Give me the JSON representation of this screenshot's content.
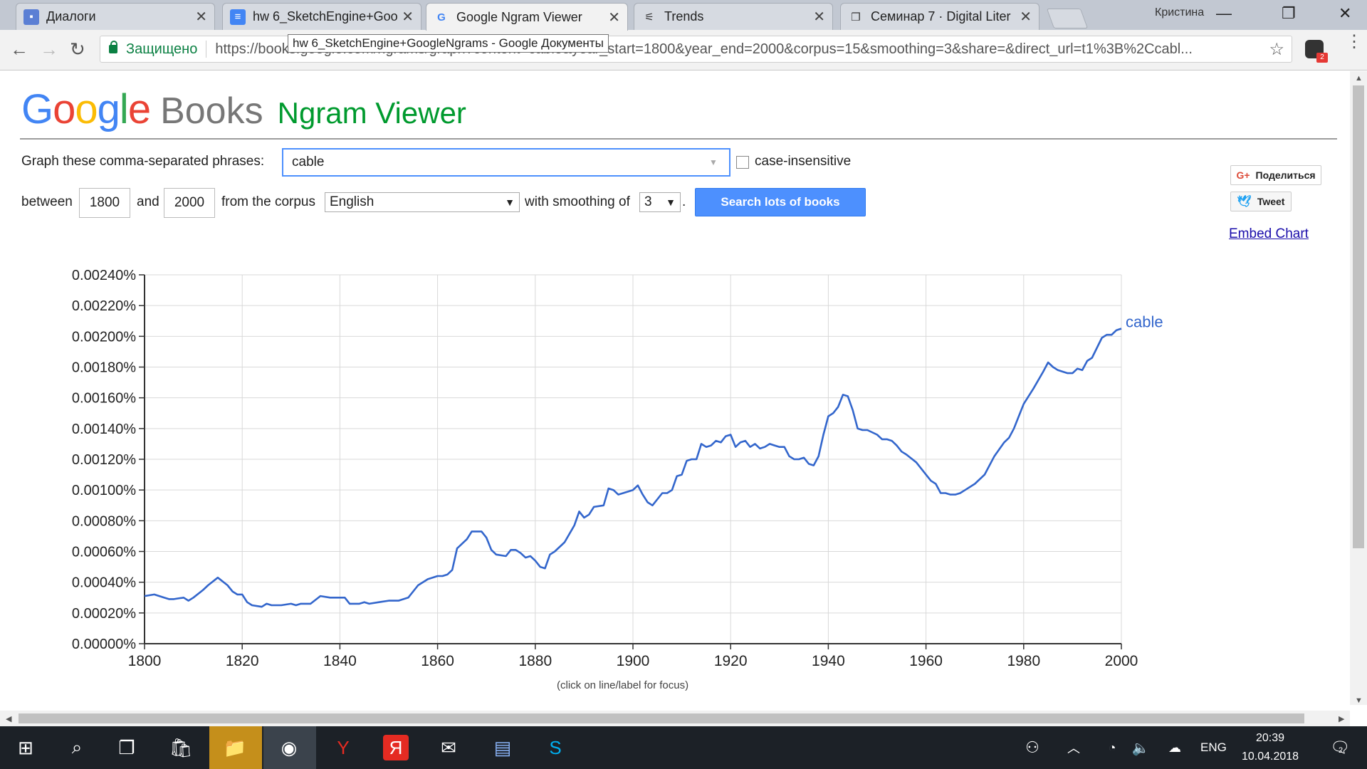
{
  "browser": {
    "tabs": [
      {
        "title": "Диалоги",
        "icon": "chat-icon"
      },
      {
        "title": "hw 6_SketchEngine+Goo",
        "icon": "docs-icon"
      },
      {
        "title": "Google Ngram Viewer",
        "icon": "google-icon"
      },
      {
        "title": "Trends",
        "icon": "trends-icon"
      },
      {
        "title": "Семинар 7 · Digital Liter",
        "icon": "book-icon"
      }
    ],
    "close_glyph": "✕",
    "profile_name": "Кристина",
    "secure_label": "Защищено",
    "url": "https://books.google.com/ngrams/graph?content=cable&year_start=1800&year_end=2000&corpus=15&smoothing=3&share=&direct_url=t1%3B%2Ccabl...",
    "tooltip": "hw 6_SketchEngine+GoogleNgrams - Google Документы",
    "extension_badge": "2"
  },
  "header": {
    "google_letters": [
      {
        "ch": "G",
        "color": "#4285f4"
      },
      {
        "ch": "o",
        "color": "#ea4335"
      },
      {
        "ch": "o",
        "color": "#fbbc05"
      },
      {
        "ch": "g",
        "color": "#4285f4"
      },
      {
        "ch": "l",
        "color": "#34a853"
      },
      {
        "ch": "e",
        "color": "#ea4335"
      }
    ],
    "books": "Books",
    "ngram_viewer": "Ngram Viewer"
  },
  "form": {
    "phrases_label": "Graph these comma-separated phrases:",
    "phrases_value": "cable",
    "case_insensitive_label": "case-insensitive",
    "between_label": "between",
    "year_start": "1800",
    "and_label": "and",
    "year_end": "2000",
    "corpus_label": "from the corpus",
    "corpus_value": "English",
    "smoothing_label": "with smoothing of",
    "smoothing_value": "3",
    "period": ".",
    "search_button": "Search lots of books"
  },
  "social": {
    "share_label": "Поделиться",
    "tweet_label": "Tweet",
    "embed_label": "Embed Chart"
  },
  "chart_data": {
    "type": "line",
    "title": "",
    "xlabel": "",
    "ylabel": "",
    "xlim": [
      1800,
      2000
    ],
    "ylim": [
      0,
      0.0024
    ],
    "x_ticks": [
      "1800",
      "1820",
      "1840",
      "1860",
      "1880",
      "1900",
      "1920",
      "1940",
      "1960",
      "1980",
      "2000"
    ],
    "y_ticks": [
      "0.00000%",
      "0.00020%",
      "0.00040%",
      "0.00060%",
      "0.00080%",
      "0.00100%",
      "0.00120%",
      "0.00140%",
      "0.00160%",
      "0.00180%",
      "0.00200%",
      "0.00220%",
      "0.00240%"
    ],
    "grid": true,
    "color": "#3366cc",
    "series": [
      {
        "name": "cable",
        "x": [
          1800,
          1802,
          1804,
          1805,
          1806,
          1808,
          1809,
          1810,
          1812,
          1813,
          1815,
          1817,
          1818,
          1819,
          1820,
          1821,
          1822,
          1824,
          1825,
          1826,
          1828,
          1830,
          1831,
          1832,
          1834,
          1836,
          1838,
          1840,
          1841,
          1842,
          1844,
          1845,
          1846,
          1848,
          1850,
          1852,
          1854,
          1856,
          1858,
          1860,
          1861,
          1862,
          1863,
          1864,
          1866,
          1867,
          1868,
          1869,
          1870,
          1871,
          1872,
          1874,
          1875,
          1876,
          1877,
          1878,
          1879,
          1880,
          1881,
          1882,
          1883,
          1884,
          1885,
          1886,
          1888,
          1889,
          1890,
          1891,
          1892,
          1894,
          1895,
          1896,
          1897,
          1898,
          1900,
          1901,
          1902,
          1903,
          1904,
          1906,
          1907,
          1908,
          1909,
          1910,
          1911,
          1912,
          1913,
          1914,
          1915,
          1916,
          1917,
          1918,
          1919,
          1920,
          1921,
          1922,
          1923,
          1924,
          1925,
          1926,
          1927,
          1928,
          1929,
          1930,
          1931,
          1932,
          1933,
          1934,
          1935,
          1936,
          1937,
          1938,
          1939,
          1940,
          1941,
          1942,
          1943,
          1944,
          1945,
          1946,
          1947,
          1948,
          1950,
          1951,
          1952,
          1953,
          1954,
          1955,
          1956,
          1958,
          1960,
          1961,
          1962,
          1963,
          1964,
          1965,
          1966,
          1967,
          1968,
          1970,
          1972,
          1974,
          1976,
          1977,
          1978,
          1979,
          1980,
          1982,
          1984,
          1985,
          1986,
          1987,
          1988,
          1989,
          1990,
          1991,
          1992,
          1993,
          1994,
          1996,
          1997,
          1998,
          1999,
          2000
        ],
        "y": [
          0.00031,
          0.00032,
          0.0003,
          0.00029,
          0.00029,
          0.0003,
          0.00028,
          0.0003,
          0.00035,
          0.00038,
          0.00043,
          0.00038,
          0.00034,
          0.00032,
          0.00032,
          0.00027,
          0.00025,
          0.00024,
          0.00026,
          0.00025,
          0.00025,
          0.00026,
          0.00025,
          0.00026,
          0.00026,
          0.00031,
          0.0003,
          0.0003,
          0.0003,
          0.00026,
          0.00026,
          0.00027,
          0.00026,
          0.00027,
          0.00028,
          0.00028,
          0.0003,
          0.00038,
          0.00042,
          0.00044,
          0.00044,
          0.00045,
          0.00048,
          0.00062,
          0.00068,
          0.00073,
          0.00073,
          0.00073,
          0.00069,
          0.00061,
          0.00058,
          0.00057,
          0.00061,
          0.00061,
          0.00059,
          0.00056,
          0.00057,
          0.00054,
          0.0005,
          0.00049,
          0.00058,
          0.0006,
          0.00063,
          0.00066,
          0.00077,
          0.00086,
          0.00082,
          0.00084,
          0.00089,
          0.0009,
          0.00101,
          0.001,
          0.00097,
          0.00098,
          0.001,
          0.00103,
          0.00097,
          0.00092,
          0.0009,
          0.00098,
          0.00098,
          0.001,
          0.00109,
          0.0011,
          0.00119,
          0.0012,
          0.0012,
          0.0013,
          0.00128,
          0.00129,
          0.00132,
          0.00131,
          0.00135,
          0.00136,
          0.00128,
          0.00131,
          0.00132,
          0.00128,
          0.0013,
          0.00127,
          0.00128,
          0.0013,
          0.00129,
          0.00128,
          0.00128,
          0.00122,
          0.0012,
          0.0012,
          0.00121,
          0.00117,
          0.00116,
          0.00122,
          0.00136,
          0.00148,
          0.0015,
          0.00154,
          0.00162,
          0.00161,
          0.00152,
          0.0014,
          0.00139,
          0.00139,
          0.00136,
          0.00133,
          0.00133,
          0.00132,
          0.00129,
          0.00125,
          0.00123,
          0.00118,
          0.0011,
          0.00106,
          0.00104,
          0.00098,
          0.00098,
          0.00097,
          0.00097,
          0.00098,
          0.001,
          0.00104,
          0.0011,
          0.00122,
          0.00131,
          0.00134,
          0.0014,
          0.00148,
          0.00156,
          0.00166,
          0.00177,
          0.00183,
          0.0018,
          0.00178,
          0.00177,
          0.00176,
          0.00176,
          0.00179,
          0.00178,
          0.00184,
          0.00186,
          0.00199,
          0.00201,
          0.00201,
          0.00204,
          0.00205
        ]
      }
    ]
  },
  "chart_caption": "(click on line/label for focus)",
  "taskbar": {
    "lang": "ENG",
    "time": "20:39",
    "date": "10.04.2018",
    "notif_count": "2"
  }
}
